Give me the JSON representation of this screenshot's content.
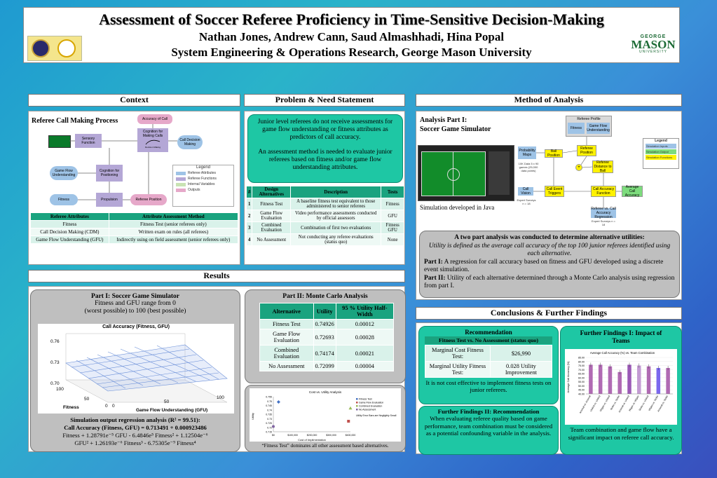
{
  "header": {
    "title": "Assessment of Soccer Referee Proficiency in Time-Sensitive Decision-Making",
    "authors": "Nathan Jones, Andrew Cann, Saud Almashhadi, Hina Popal",
    "affiliation": "System Engineering & Operations Research, George Mason University",
    "gmu_top": "GEORGE",
    "gmu_mid": "MASON",
    "gmu_bottom": "UNIVERSITY"
  },
  "context": {
    "heading": "Context",
    "diagram_title": "Referee Call Making Process",
    "nodes": {
      "accuracy": "Accuracy of Call",
      "cognition_call": "Cognition for Making Calls",
      "decision_maker": "Decision Making",
      "sensory": "Sensory Function",
      "call_decision": "Call Decision Making",
      "game_flow": "Game Flow Understanding",
      "cognition_pos": "Cognition for Positioning",
      "fitness": "Fitness",
      "propulsion": "Propulsion",
      "referee_position": "Referee Position"
    },
    "legend": {
      "title": "Legend",
      "items": [
        "Referee Attributes",
        "Referee Functions",
        "Internal Variables",
        "Outputs"
      ],
      "colors": [
        "#9ec3e6",
        "#b4a7d6",
        "#c9e3b3",
        "#e6a8c9"
      ]
    },
    "table": {
      "headers": [
        "Referee Attributes",
        "Attribute Assessment Method"
      ],
      "rows": [
        [
          "Fitness",
          "Fitness Test (senior referees only)"
        ],
        [
          "Call Decision Making (CDM)",
          "Written exam on rules (all referees)"
        ],
        [
          "Game Flow Understanding (GFU)",
          "Indirectly using on field assessment (senior referees only)"
        ]
      ]
    }
  },
  "problem": {
    "heading": "Problem & Need Statement",
    "p1": "Junior level referees do not receive assessments for game flow understanding or fitness attributes as predictors of call accuracy.",
    "p2": "An assessment method is needed to evaluate junior referees based on fitness and/or game flow understanding attributes.",
    "table": {
      "headers": [
        "#",
        "Design Alternatives",
        "Description",
        "Tests"
      ],
      "rows": [
        [
          "1",
          "Fitness Test",
          "A baseline fitness test equivalent to those administered to senior referees",
          "Fitness"
        ],
        [
          "2",
          "Game Flow Evaluation",
          "Video performance assessments conducted by official assessors",
          "GFU"
        ],
        [
          "3",
          "Combined Evaluation",
          "Combination of first two evaluations",
          "Fitness GFU"
        ],
        [
          "4",
          "No Assessment",
          "Not conducting any referee evaluations (status quo)",
          "None"
        ]
      ]
    }
  },
  "method": {
    "heading": "Method of Analysis",
    "part_title_1": "Analysis Part I:",
    "part_title_2": "Soccer Game Simulator",
    "sim_caption": "Simulation developed in Java",
    "diagram": {
      "profile": "Referee Profile",
      "fitness": "Fitness",
      "gfu": "Game Flow Understanding",
      "probability": "Probability Maps",
      "ball_position": "Ball Position",
      "referee_position": "Referee Position",
      "referee_distance": "Referee Distance to Ball",
      "call_event": "Call Event Triggers",
      "call_accuracy_fn": "Call Accuracy Function",
      "average_call": "Average Call Accuracy",
      "call_vision": "Call Vision",
      "referee_vs": "Referee vs. Call Accuracy Regression",
      "legend_title": "Legend",
      "legend_items": [
        "Simulation Inputs",
        "Simulation Output",
        "Simulation Functions"
      ],
      "note_a": "10K Data 5 x 90 games (25,000 data points)",
      "note_b": "Expert Surveys n = 18",
      "note_c": "Expert Surveys n = 18",
      "plus": "+"
    },
    "box": {
      "title": "A two part analysis was conducted to determine alternative utilities:",
      "italic": "Utility is defined as the average call accuracy of the top 100 junior referees identified using each alternative.",
      "part1_label": "Part I:",
      "part1": "A regression for call accuracy based on fitness and GFU developed using a discrete event simulation.",
      "part2_label": "Part II:",
      "part2": "Utility of each alternative determined through a Monte Carlo analysis using regression from part I."
    }
  },
  "results": {
    "heading": "Results",
    "part1": {
      "title": "Part I: Soccer Game Simulator",
      "sub1": "Fitness and GFU range from 0",
      "sub2": "(worst possible) to 100 (best possible)",
      "chart_title": "Call Accuracy (Fitness, GFU)",
      "z_ticks": [
        "0.76",
        "0.73",
        "0.70"
      ],
      "fit_ticks": [
        "100",
        "50",
        "0"
      ],
      "gfu_ticks": [
        "0",
        "50",
        "100"
      ],
      "fitness_label": "Fitness",
      "gfu_label": "Game Flow Understanding (GFU)",
      "reg_title": "Simulation output regression analysis (R² = 99.51):",
      "reg_line1": "Call Accuracy (Fitness, GFU) = 0.713491 + 0.000923486",
      "reg_line2": "Fitness + 1.28791e⁻⁵ GFU - 6.4846e⁵ Fitness² + 1.12504e⁻⁶",
      "reg_line3": "GFU² + 1.26193e⁻⁶ Fitness³ - 6.75305e⁻⁹ Fitness⁴"
    },
    "part2": {
      "title": "Part II: Monte Carlo Analysis",
      "headers": [
        "Alternative",
        "Utility",
        "95 % Utility Half-Width"
      ],
      "rows": [
        [
          "Fitness Test",
          "0.74926",
          "0.00012"
        ],
        [
          "Game Flow Evaluation",
          "0.72693",
          "0.00028"
        ],
        [
          "Combined Evaluation",
          "0.74174",
          "0.00021"
        ],
        [
          "No Assessment",
          "0.72099",
          "0.00004"
        ]
      ]
    },
    "cost_chart": {
      "title": "Cost vs. Utility Analysis",
      "ylabel": "Utility",
      "xlabel": "Cost of Implimentation",
      "y_ticks": [
        "0.755",
        "0.75",
        "0.745",
        "0.74",
        "0.735",
        "0.73",
        "0.725",
        "0.72",
        "0.715"
      ],
      "x_ticks": [
        "$0",
        "$100,000",
        "$200,000",
        "$300,000",
        "$400,000"
      ],
      "legend": [
        "Fitness Test",
        "Game Flow Evaluation",
        "Combined Evaluation",
        "No Assessment"
      ],
      "note": "Utility Error Bars are Negligibly Small",
      "caption": "“Fitness Test” dominates all other assessment based alternatives."
    }
  },
  "conclusions": {
    "heading": "Conclusions & Further Findings",
    "rec_title": "Recommendation",
    "rec_sub": "Fitness Test vs. No Assessment (status quo)",
    "rec_rows": [
      [
        "Marginal Cost Fitness Test:",
        "$26,990"
      ],
      [
        "Marginal Utility Fitness Test:",
        "0.028 Utility Improvement"
      ]
    ],
    "rec_note": "It is not cost effective to implement fitness tests on junior referees.",
    "ff2_title": "Further Findings II: Recommendation",
    "ff2_text": "When evaluating referee quality based on game performance, team combination must be considered as a potential confounding variable in the analysis.",
    "ff1_title": "Further Findings I: Impact of Teams",
    "ff1_chart_title": "Average Call Accuracy (%)  vs. Team Combination",
    "ff1_ylabel": "Average Call Accuracy (%)",
    "ff1_y_ticks": [
      "85.00",
      "80.00",
      "75.00",
      "70.00",
      "65.00",
      "60.00",
      "55.00",
      "50.00",
      "45.00",
      "40.00"
    ],
    "ff1_text": "Team combination and game flow have a significant impact on referee call accuracy."
  },
  "chart_data": [
    {
      "type": "table",
      "title": "Part II: Monte Carlo Analysis",
      "columns": [
        "Alternative",
        "Utility",
        "95 % Utility Half-Width"
      ],
      "rows": [
        [
          "Fitness Test",
          0.74926,
          0.00012
        ],
        [
          "Game Flow Evaluation",
          0.72693,
          0.00028
        ],
        [
          "Combined Evaluation",
          0.74174,
          0.00021
        ],
        [
          "No Assessment",
          0.72099,
          4e-05
        ]
      ]
    },
    {
      "type": "scatter",
      "title": "Cost vs. Utility Analysis",
      "xlabel": "Cost of Implimentation",
      "ylabel": "Utility",
      "xlim": [
        0,
        400000
      ],
      "ylim": [
        0.715,
        0.755
      ],
      "series": [
        {
          "name": "Fitness Test",
          "x": [
            27000
          ],
          "y": [
            0.749
          ],
          "color": "#4472c4"
        },
        {
          "name": "Game Flow Evaluation",
          "x": [
            390000
          ],
          "y": [
            0.727
          ],
          "color": "#c0504d"
        },
        {
          "name": "Combined Evaluation",
          "x": [
            400000
          ],
          "y": [
            0.742
          ],
          "color": "#9bbb59"
        },
        {
          "name": "No Assessment",
          "x": [
            0
          ],
          "y": [
            0.721
          ],
          "color": "#8064a2"
        }
      ]
    },
    {
      "type": "bar",
      "title": "Average Call Accuracy (%)  vs. Team Combination",
      "ylabel": "Average Call Accuracy (%)",
      "ylim": [
        40,
        85
      ],
      "categories": [
        "Arsenal vs. Arsenal",
        "United vs. United",
        "Wigan vs. United",
        "Stoke vs. Stoke",
        "Arsenal vs. United",
        "Wigan vs. Wigan",
        "Stoke vs. United",
        "Wigan vs. Stoke",
        "Arsenal vs. Stoke"
      ],
      "values": [
        76,
        76,
        74,
        67,
        76,
        75,
        74,
        72,
        72
      ],
      "colors": [
        "#b06ab3",
        "#b06ab3",
        "#b06ab3",
        "#b06ab3",
        "#9b59b6",
        "#c39bd3",
        "#b06ab3",
        "#7b68ee",
        "#b06ab3"
      ]
    }
  ]
}
